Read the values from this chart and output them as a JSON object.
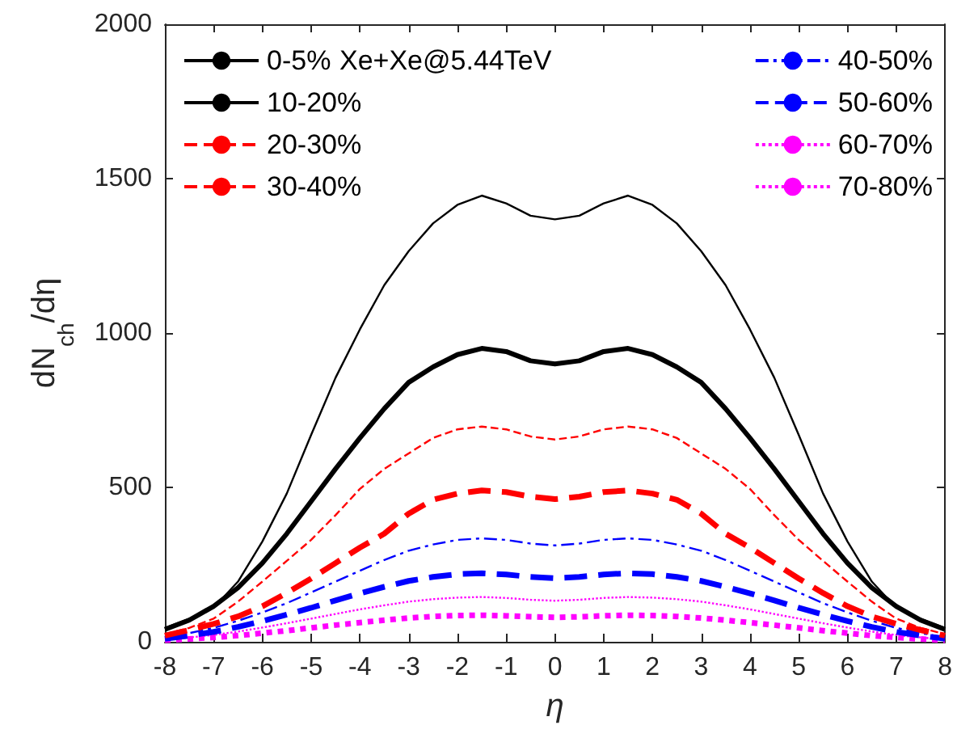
{
  "chart_data": {
    "type": "line",
    "xlabel": "η",
    "ylabel": "dN$_{ch}$/dη",
    "annotations": [
      "Xe+Xe@5.44TeV"
    ],
    "x": [
      -8,
      -7.5,
      -7,
      -6.5,
      -6,
      -5.5,
      -5,
      -4.5,
      -4,
      -3.5,
      -3,
      -2.5,
      -2,
      -1.5,
      -1,
      -0.5,
      0,
      0.5,
      1,
      1.5,
      2,
      2.5,
      3,
      3.5,
      4,
      4.5,
      5,
      5.5,
      6,
      6.5,
      7,
      7.5,
      8
    ],
    "xlim": [
      -8,
      8
    ],
    "xticks": [
      -8,
      -7,
      -6,
      -5,
      -4,
      -3,
      -2,
      -1,
      0,
      1,
      2,
      3,
      4,
      5,
      6,
      7,
      8
    ],
    "ylim": [
      0,
      2000
    ],
    "yticks": [
      0,
      500,
      1000,
      1500,
      2000
    ],
    "grid": false,
    "legend": "top",
    "marker": "none",
    "series": [
      {
        "name": "0-5%",
        "color": "#000000",
        "line_style": "solid",
        "values": [
          45,
          75,
          110,
          195,
          325,
          480,
          670,
          855,
          1012,
          1155,
          1265,
          1355,
          1415,
          1445,
          1420,
          1380,
          1368,
          1380,
          1420,
          1445,
          1415,
          1355,
          1265,
          1155,
          1012,
          855,
          670,
          480,
          325,
          195,
          110,
          75,
          45
        ]
      },
      {
        "name": "10-20%",
        "color": "#000000",
        "line_style": "solid",
        "values": [
          40,
          70,
          115,
          175,
          255,
          350,
          455,
          560,
          660,
          755,
          840,
          890,
          930,
          950,
          940,
          910,
          900,
          910,
          940,
          950,
          930,
          890,
          840,
          755,
          660,
          560,
          455,
          350,
          255,
          175,
          115,
          70,
          40
        ]
      },
      {
        "name": "20-30%",
        "color": "#ff0000",
        "line_style": "dashed",
        "values": [
          25,
          45,
          75,
          130,
          195,
          262,
          330,
          410,
          495,
          560,
          610,
          660,
          688,
          697,
          688,
          665,
          655,
          665,
          688,
          697,
          688,
          660,
          610,
          560,
          495,
          410,
          330,
          262,
          195,
          130,
          75,
          45,
          25
        ]
      },
      {
        "name": "30-40%",
        "color": "#ff0000",
        "line_style": "dashed",
        "values": [
          20,
          38,
          58,
          82,
          115,
          158,
          205,
          255,
          305,
          350,
          415,
          460,
          480,
          490,
          485,
          470,
          462,
          470,
          485,
          490,
          480,
          460,
          415,
          350,
          305,
          255,
          205,
          158,
          115,
          82,
          58,
          38,
          20
        ]
      },
      {
        "name": "40-50%",
        "color": "#0000ff",
        "line_style": "dashdot",
        "values": [
          15,
          28,
          45,
          68,
          95,
          125,
          160,
          195,
          230,
          265,
          295,
          315,
          330,
          335,
          330,
          318,
          312,
          318,
          330,
          335,
          330,
          315,
          295,
          265,
          230,
          195,
          160,
          125,
          95,
          68,
          45,
          28,
          15
        ]
      },
      {
        "name": "50-60%",
        "color": "#0000ff",
        "line_style": "dashed",
        "values": [
          10,
          20,
          32,
          48,
          67,
          88,
          110,
          134,
          157,
          178,
          197,
          210,
          219,
          222,
          218,
          210,
          206,
          210,
          218,
          222,
          219,
          210,
          197,
          178,
          157,
          134,
          110,
          88,
          67,
          48,
          32,
          20,
          10
        ]
      },
      {
        "name": "60-70%",
        "color": "#ff00ff",
        "line_style": "dotted",
        "values": [
          7,
          14,
          22,
          33,
          46,
          60,
          75,
          90,
          105,
          118,
          130,
          138,
          143,
          145,
          142,
          136,
          133,
          136,
          142,
          145,
          143,
          138,
          130,
          118,
          105,
          90,
          75,
          60,
          46,
          33,
          22,
          14,
          7
        ]
      },
      {
        "name": "70-80%",
        "color": "#ff00ff",
        "line_style": "dotted",
        "values": [
          5,
          9,
          14,
          20,
          28,
          36,
          45,
          54,
          62,
          70,
          77,
          82,
          85,
          86,
          84,
          81,
          79,
          81,
          84,
          86,
          85,
          82,
          77,
          70,
          62,
          54,
          45,
          36,
          28,
          20,
          14,
          9,
          5
        ]
      }
    ]
  }
}
